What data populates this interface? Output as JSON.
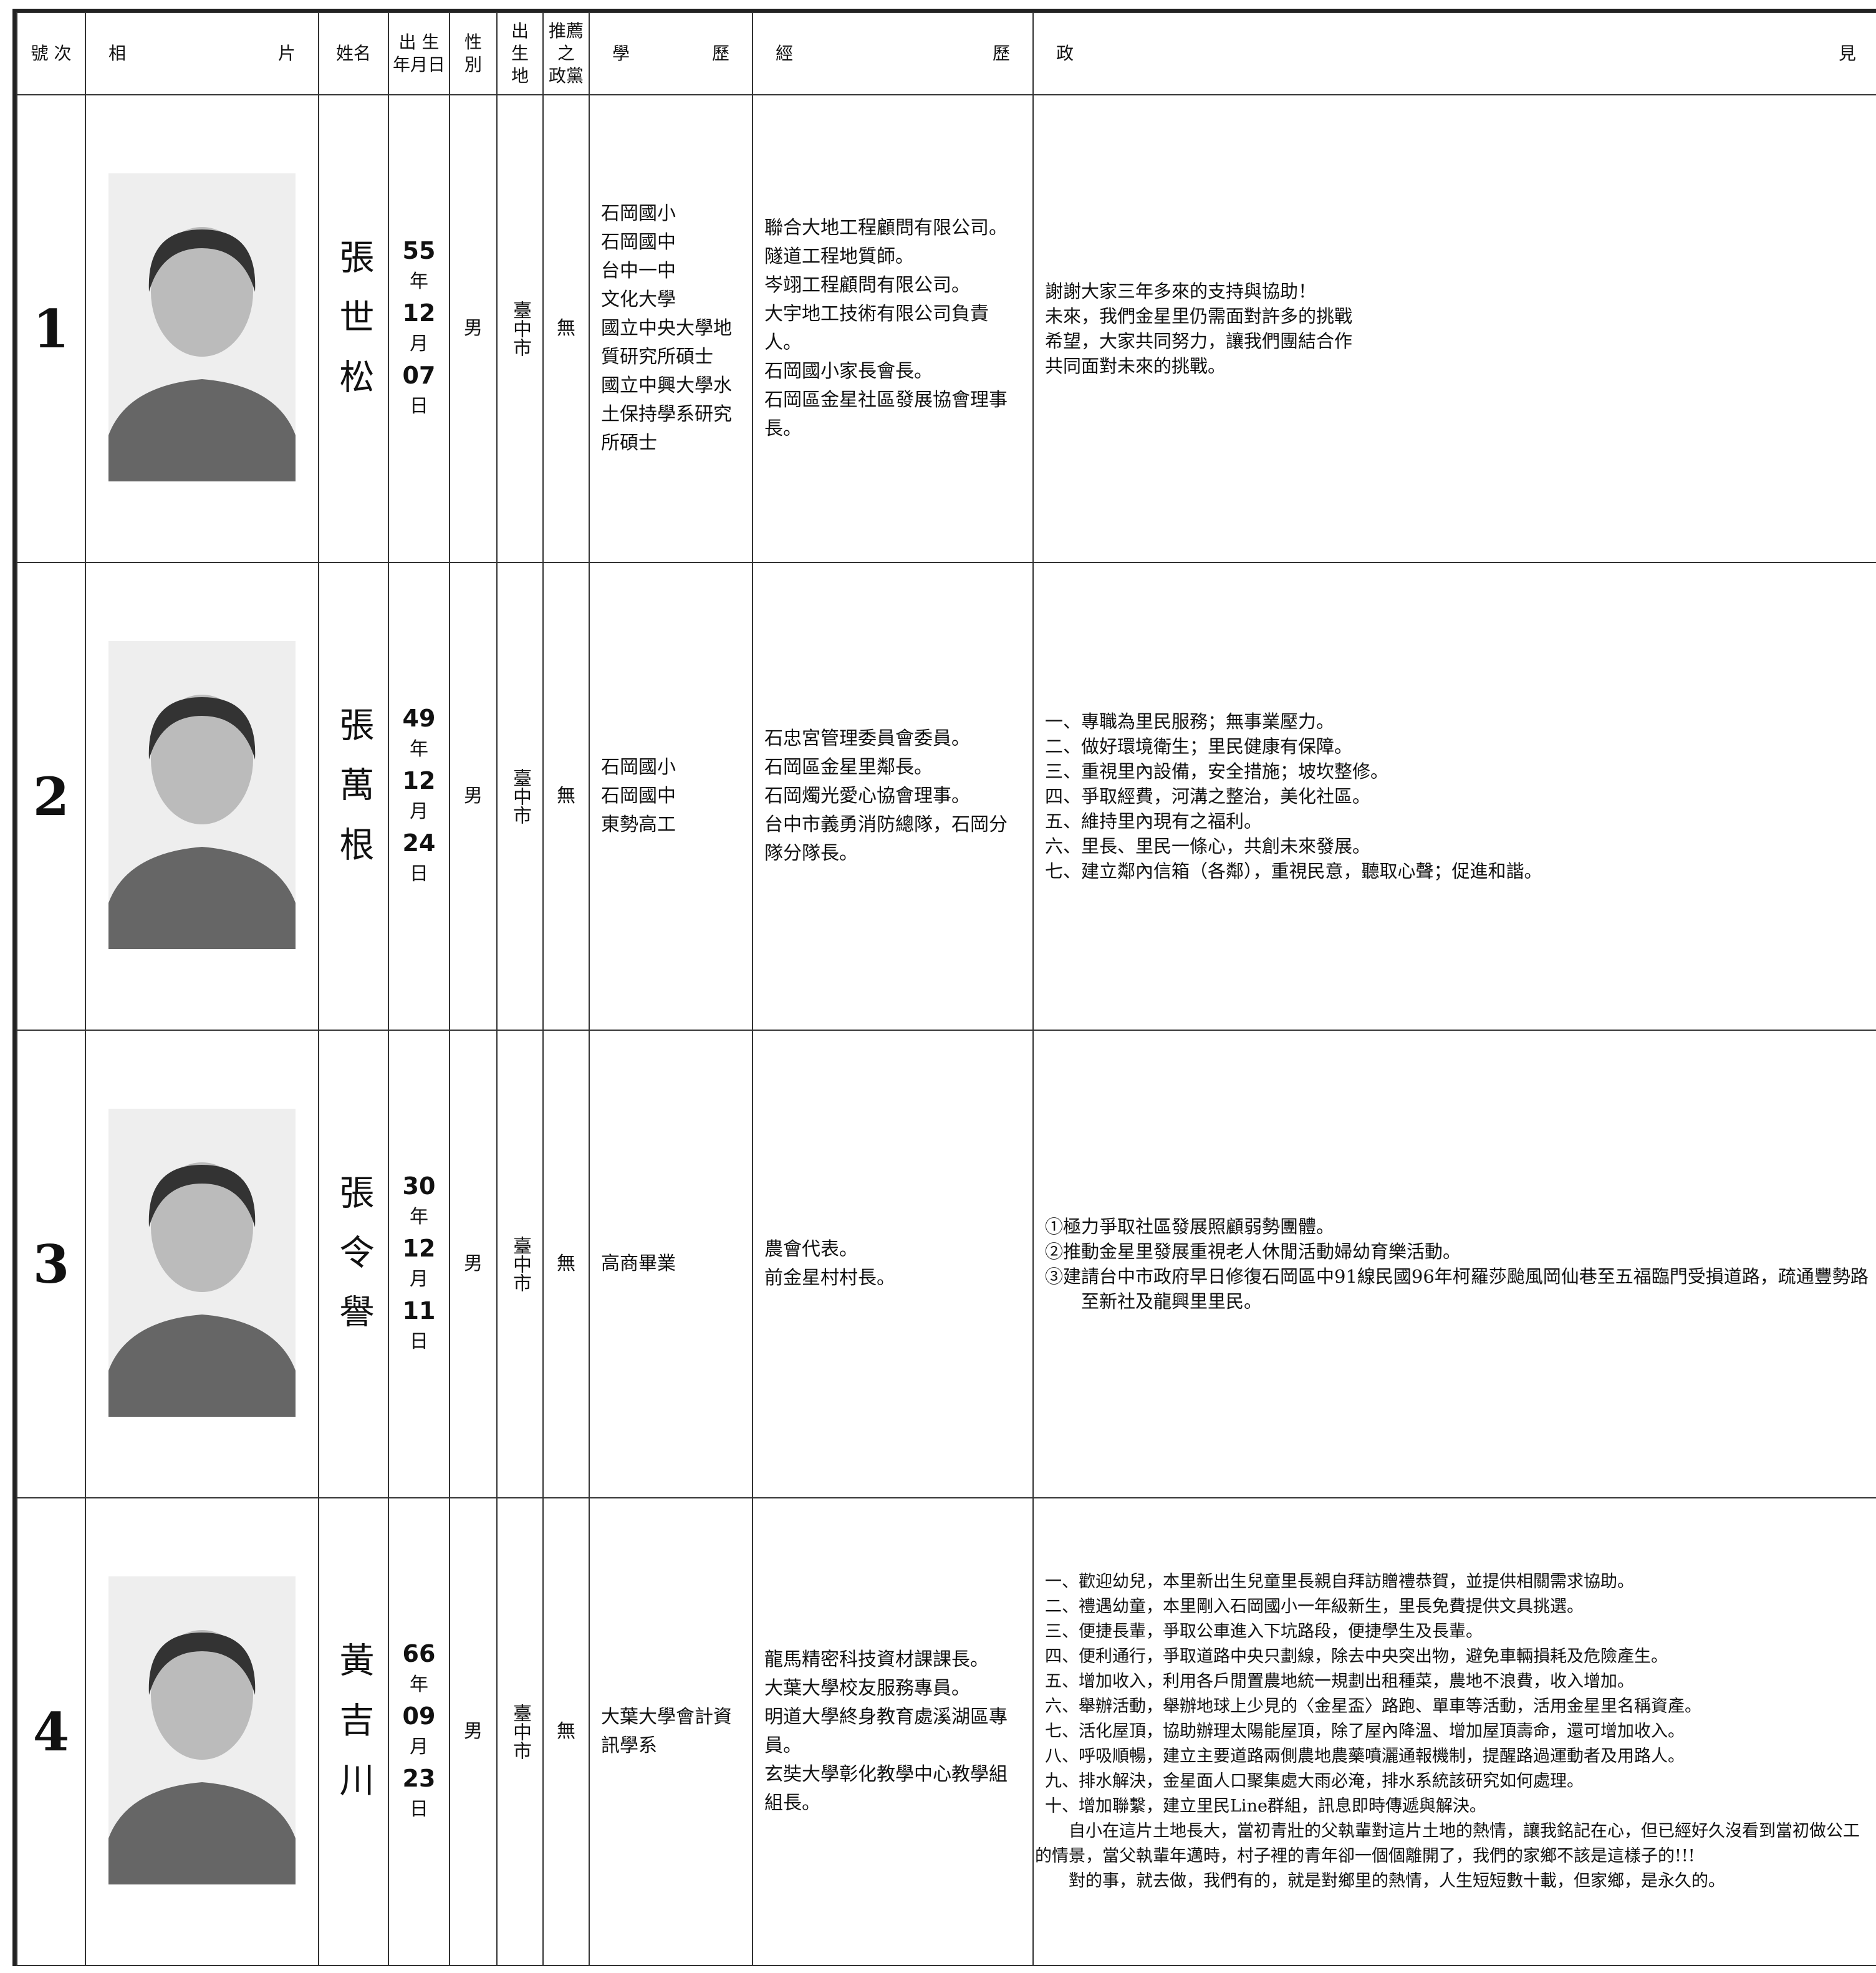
{
  "header": [
    "號次",
    "相片",
    "姓名",
    "出生年月日",
    "性別",
    "出生地",
    "推薦之政黨",
    "學歷",
    "經歷",
    "政見"
  ],
  "header_lines": [
    [
      "號 次"
    ],
    [
      "相片"
    ],
    [
      "姓名"
    ],
    [
      "出 生",
      "年月日"
    ],
    [
      "性",
      "別"
    ],
    [
      "出",
      "生",
      "地"
    ],
    [
      "推薦",
      "之",
      "政黨"
    ],
    [
      "學歷"
    ],
    [
      "經歷"
    ],
    [
      "政見"
    ]
  ],
  "candidates": [
    {
      "number": "1",
      "name": "張世松",
      "birth": [
        "55",
        "年",
        "12",
        "月",
        "07",
        "日"
      ],
      "gender": "男",
      "birthplace": "臺中市",
      "party": "無",
      "education": [
        "石岡國小",
        "石岡國中",
        "台中一中",
        "文化大學",
        "國立中央大學地質研究所碩士",
        "國立中興大學水土保持學系研究所碩士"
      ],
      "experience": [
        "聯合大地工程顧問有限公司。",
        "隧道工程地質師。",
        "岑翊工程顧問有限公司。",
        "大宇地工技術有限公司負責人。",
        "石岡國小家長會長。",
        "石岡區金星社區發展協會理事長。"
      ],
      "platform": [
        "謝謝大家三年多來的支持與協助！",
        "未來，我們金星里仍需面對許多的挑戰",
        "希望，大家共同努力，讓我們團結合作",
        "共同面對未來的挑戰。"
      ],
      "statement": []
    },
    {
      "number": "2",
      "name": "張萬根",
      "birth": [
        "49",
        "年",
        "12",
        "月",
        "24",
        "日"
      ],
      "gender": "男",
      "birthplace": "臺中市",
      "party": "無",
      "education": [
        "石岡國小",
        "石岡國中",
        "東勢高工"
      ],
      "experience": [
        "石忠宮管理委員會委員。",
        "石岡區金星里鄰長。",
        "石岡燭光愛心協會理事。",
        "台中市義勇消防總隊，石岡分隊分隊長。"
      ],
      "platform": [
        "一、專職為里民服務；無事業壓力。",
        "二、做好環境衛生；里民健康有保障。",
        "三、重視里內設備，安全措施；坡坎整修。",
        "四、爭取經費，河溝之整治，美化社區。",
        "五、維持里內現有之福利。",
        "六、里長、里民一條心，共創未來發展。",
        "七、建立鄰內信箱（各鄰），重視民意，聽取心聲；促進和諧。"
      ],
      "statement": []
    },
    {
      "number": "3",
      "name": "張令譽",
      "birth": [
        "30",
        "年",
        "12",
        "月",
        "11",
        "日"
      ],
      "gender": "男",
      "birthplace": "臺中市",
      "party": "無",
      "education": [
        "高商畢業"
      ],
      "experience": [
        "農會代表。",
        "前金星村村長。"
      ],
      "platform": [
        "①極力爭取社區發展照顧弱勢團體。",
        "②推動金星里發展重視老人休閒活動婦幼育樂活動。",
        "③建請台中市政府早日修復石岡區中91線民國96年柯羅莎颱風岡仙巷至五福臨門受損道路，疏通豐勢路至新社及龍興里里民。"
      ],
      "statement": []
    },
    {
      "number": "4",
      "name": "黃吉川",
      "birth": [
        "66",
        "年",
        "09",
        "月",
        "23",
        "日"
      ],
      "gender": "男",
      "birthplace": "臺中市",
      "party": "無",
      "education": [
        "大葉大學會計資訊學系"
      ],
      "experience": [
        "龍馬精密科技資材課課長。",
        "大葉大學校友服務專員。",
        "明道大學終身教育處溪湖區專員。",
        "玄奘大學彰化教學中心教學組組長。"
      ],
      "platform": [
        "一、歡迎幼兒，本里新出生兒童里長親自拜訪贈禮恭賀，並提供相關需求協助。",
        "二、禮遇幼童，本里剛入石岡國小一年級新生，里長免費提供文具挑選。",
        "三、便捷長輩，爭取公車進入下坑路段，便捷學生及長輩。",
        "四、便利通行，爭取道路中央只劃線，除去中央突出物，避免車輛損耗及危險產生。",
        "五、增加收入，利用各戶閒置農地統一規劃出租種菜，農地不浪費，收入增加。",
        "六、舉辦活動，舉辦地球上少見的〈金星盃〉路跑、單車等活動，活用金星里名稱資產。",
        "七、活化屋頂，協助辦理太陽能屋頂，除了屋內降溫、增加屋頂壽命，還可增加收入。",
        "八、呼吸順暢，建立主要道路兩側農地農藥噴灑通報機制，提醒路過運動者及用路人。",
        "九、排水解決，金星面人口聚集處大雨必淹，排水系統該研究如何處理。",
        "十、增加聯繫，建立里民Line群組，訊息即時傳遞與解決。"
      ],
      "statement": [
        "自小在這片土地長大，當初青壯的父執輩對這片土地的熱情，讓我銘記在心，但已經好久沒看到當初做公工的情景，當父執輩年邁時，村子裡的青年卻一個個離開了，我們的家鄉不該是這樣子的!!!",
        "對的事，就去做，我們有的，就是對鄉里的熱情，人生短短數十載，但家鄉，是永久的。"
      ]
    }
  ]
}
